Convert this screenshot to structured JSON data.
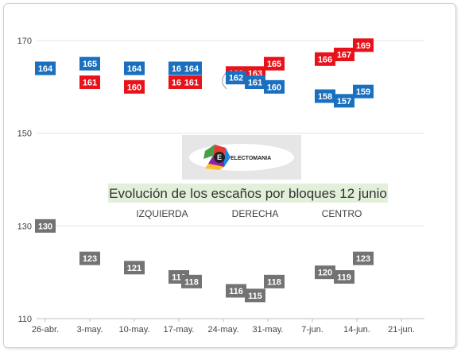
{
  "chart_data": {
    "type": "scatter",
    "title": "Evolución de los escaños por bloques 12 junio",
    "xlabel": "",
    "ylabel": "",
    "x_ticks": [
      "26-abr.",
      "3-may.",
      "10-may.",
      "17-may.",
      "24-may.",
      "31-may.",
      "7-jun.",
      "14-jun.",
      "21-jun."
    ],
    "y_ticks": [
      110,
      130,
      150,
      170
    ],
    "ylim": [
      110,
      170
    ],
    "grid": true,
    "group_labels": [
      "IZQUIERDA",
      "DERECHA",
      "CENTRO"
    ],
    "series": [
      {
        "key": "izquierda",
        "color": "#e8121b",
        "points": [
          {
            "x": "3-may.",
            "y": 161
          },
          {
            "x": "10-may.",
            "y": 160
          },
          {
            "x": "17-may.",
            "y": 161
          },
          {
            "x": "19-may.",
            "y": 161
          },
          {
            "x": "26-may.",
            "y": 163
          },
          {
            "x": "29-may.",
            "y": 163
          },
          {
            "x": "1-jun.",
            "y": 165
          },
          {
            "x": "9-jun.",
            "y": 166
          },
          {
            "x": "12-jun.",
            "y": 167
          },
          {
            "x": "15-jun.",
            "y": 169
          }
        ]
      },
      {
        "key": "derecha",
        "color": "#1a6fbf",
        "points": [
          {
            "x": "26-abr.",
            "y": 164
          },
          {
            "x": "3-may.",
            "y": 165
          },
          {
            "x": "10-may.",
            "y": 164
          },
          {
            "x": "17-may.",
            "y": 164
          },
          {
            "x": "19-may.",
            "y": 164
          },
          {
            "x": "26-may.",
            "y": 162
          },
          {
            "x": "29-may.",
            "y": 161
          },
          {
            "x": "1-jun.",
            "y": 160
          },
          {
            "x": "9-jun.",
            "y": 158
          },
          {
            "x": "12-jun.",
            "y": 157
          },
          {
            "x": "15-jun.",
            "y": 159
          }
        ]
      },
      {
        "key": "centro",
        "color": "#737373",
        "points": [
          {
            "x": "26-abr.",
            "y": 130
          },
          {
            "x": "3-may.",
            "y": 123
          },
          {
            "x": "10-may.",
            "y": 121
          },
          {
            "x": "17-may.",
            "y": 119
          },
          {
            "x": "19-may.",
            "y": 118
          },
          {
            "x": "26-may.",
            "y": 116
          },
          {
            "x": "29-may.",
            "y": 115
          },
          {
            "x": "1-jun.",
            "y": 118
          },
          {
            "x": "9-jun.",
            "y": 120
          },
          {
            "x": "12-jun.",
            "y": 119
          },
          {
            "x": "15-jun.",
            "y": 123
          }
        ]
      }
    ]
  },
  "logo": {
    "text": "ELECTOMANIA",
    "letter": "E"
  },
  "colors": {
    "grid": "#e3e3e3",
    "title_background": "#e2efd9",
    "logo_panel": "#e6e6e6"
  }
}
